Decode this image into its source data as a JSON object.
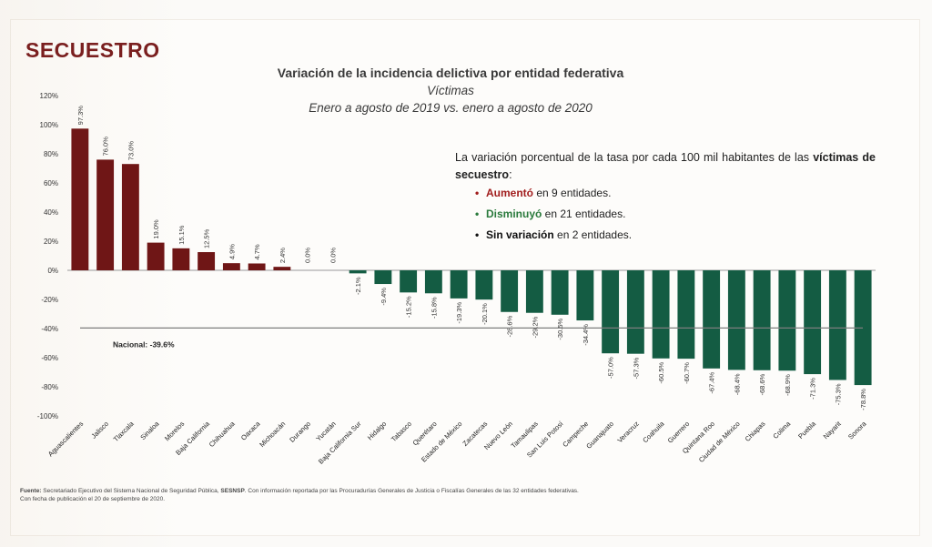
{
  "headline": "SECUESTRO",
  "chart_title": "Variación de la incidencia delictiva por entidad federativa",
  "chart_subtitle1": "Víctimas",
  "chart_subtitle2": "Enero a agosto de 2019 vs. enero a agosto de 2020",
  "note": {
    "intro_prefix": "La variación porcentual de la tasa por cada 100 mil habitantes de las",
    "intro_bold": "víctimas de secuestro",
    "intro_suffix": ":",
    "items": [
      {
        "bullet": "•",
        "bold": "Aumentó",
        "rest": " en 9 entidades.",
        "color": "#a11d1d"
      },
      {
        "bullet": "•",
        "bold": "Disminuyó",
        "rest": " en 21 entidades.",
        "color": "#2a7a3c"
      },
      {
        "bullet": "•",
        "bold": "Sin variación",
        "rest": " en 2 entidades.",
        "color": "#111111"
      }
    ]
  },
  "footer": {
    "label": "Fuente:",
    "text1": " Secretariado Ejecutivo del Sistema Nacional de Seguridad Pública, ",
    "bold2": "SESNSP",
    "text2": ". Con información reportada por las Procuradurías Generales de Justicia o Fiscalías Generales de las 32 entidades federativas.",
    "line2": "Con fecha de publicación el 20 de septiembre de 2020."
  },
  "colors": {
    "positive": "#6f1616",
    "negative": "#145c43",
    "headline": "#7a1f1f",
    "national_line": "#7d7d7d"
  },
  "chart_data": {
    "type": "bar",
    "ylim": [
      -100,
      120
    ],
    "yticks": [
      -100,
      -80,
      -60,
      -40,
      -20,
      0,
      20,
      40,
      60,
      80,
      100,
      120
    ],
    "tick_suffix": "%",
    "grid": false,
    "categories": [
      "Aguascalientes",
      "Jalisco",
      "Tlaxcala",
      "Sinaloa",
      "Morelos",
      "Baja California",
      "Chihuahua",
      "Oaxaca",
      "Michoacán",
      "Durango",
      "Yucatán",
      "Baja California Sur",
      "Hidalgo",
      "Tabasco",
      "Querétaro",
      "Estado de México",
      "Zacatecas",
      "Nuevo León",
      "Tamaulipas",
      "San Luis Potosí",
      "Campeche",
      "Guanajuato",
      "Veracruz",
      "Coahuila",
      "Guerrero",
      "Quintana Roo",
      "Ciudad de México",
      "Chiapas",
      "Colima",
      "Puebla",
      "Nayarit",
      "Sonora"
    ],
    "values": [
      97.3,
      76.0,
      73.0,
      19.0,
      15.1,
      12.5,
      4.9,
      4.7,
      2.4,
      0.0,
      0.0,
      -2.1,
      -9.4,
      -15.2,
      -15.8,
      -19.3,
      -20.1,
      -28.6,
      -29.2,
      -30.5,
      -34.4,
      -57.0,
      -57.3,
      -60.5,
      -60.7,
      -67.4,
      -68.4,
      -68.6,
      -68.9,
      -71.3,
      -75.3,
      -78.8
    ],
    "labels": [
      "97.3%",
      "76.0%",
      "73.0%",
      "19.0%",
      "15.1%",
      "12.5%",
      "4.9%",
      "4.7%",
      "2.4%",
      "0.0%",
      "0.0%",
      "-2.1%",
      "-9.4%",
      "-15.2%",
      "-15.8%",
      "-19.3%",
      "-20.1%",
      "-28.6%",
      "-29.2%",
      "-30.5%",
      "-34.4%",
      "-57.0%",
      "-57.3%",
      "-60.5%",
      "-60.7%",
      "-67.4%",
      "-68.4%",
      "-68.6%",
      "-68.9%",
      "-71.3%",
      "-75.3%",
      "-78.8%"
    ],
    "reference_line": {
      "label": "Nacional: -39.6%",
      "value": -39.6
    }
  }
}
